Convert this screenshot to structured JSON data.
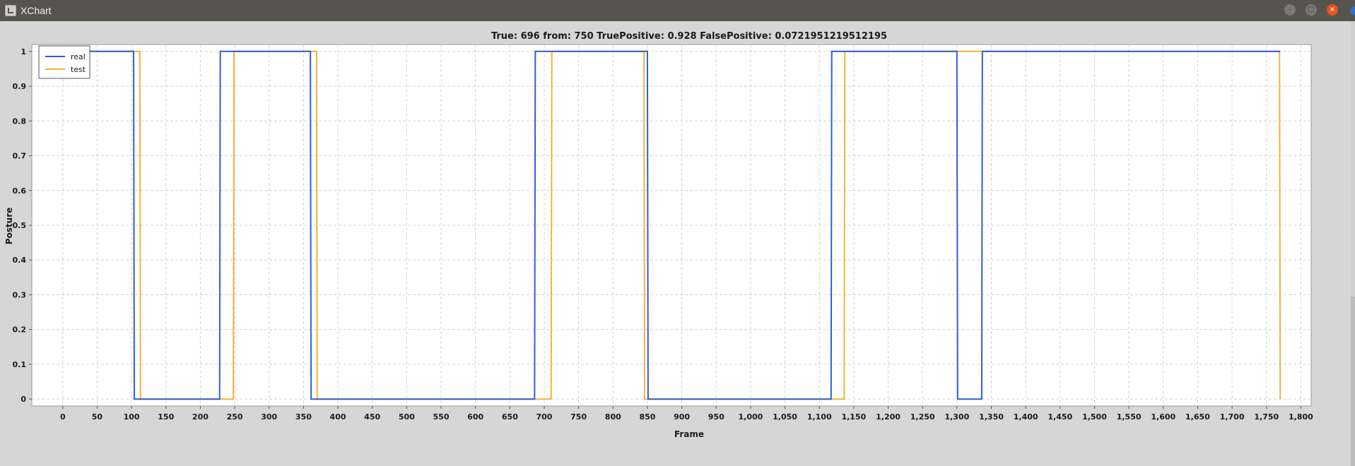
{
  "window": {
    "title": "XChart",
    "buttons": {
      "minimize": "–",
      "maximize": "□",
      "close": "×"
    }
  },
  "colors": {
    "real": "#2f5fd0",
    "test": "#f3b23a",
    "plot_bg": "#ffffff",
    "grid": "#d4d4d4"
  },
  "chart_data": {
    "type": "line",
    "step": true,
    "title": "True: 696 from: 750 TruePositive: 0.928 FalsePositive: 0.0721951219512195",
    "xlabel": "Frame",
    "ylabel": "Posture",
    "xlim": [
      -45,
      1815
    ],
    "ylim": [
      -0.02,
      1.02
    ],
    "xticks": [
      0,
      50,
      100,
      150,
      200,
      250,
      300,
      350,
      400,
      450,
      500,
      550,
      600,
      650,
      700,
      750,
      800,
      850,
      900,
      950,
      1000,
      1050,
      1100,
      1150,
      1200,
      1250,
      1300,
      1350,
      1400,
      1450,
      1500,
      1550,
      1600,
      1650,
      1700,
      1750,
      1800
    ],
    "xtick_labels": [
      "0",
      "50",
      "100",
      "150",
      "200",
      "250",
      "300",
      "350",
      "400",
      "450",
      "500",
      "550",
      "600",
      "650",
      "700",
      "750",
      "800",
      "850",
      "900",
      "950",
      "1,000",
      "1,050",
      "1,100",
      "1,150",
      "1,200",
      "1,250",
      "1,300",
      "1,350",
      "1,400",
      "1,450",
      "1,500",
      "1,550",
      "1,600",
      "1,650",
      "1,700",
      "1,750",
      "1,800"
    ],
    "yticks": [
      0,
      0.1,
      0.2,
      0.3,
      0.4,
      0.5,
      0.6,
      0.7,
      0.8,
      0.9,
      1
    ],
    "ytick_labels": [
      "0",
      "0.1",
      "0.2",
      "0.3",
      "0.4",
      "0.5",
      "0.6",
      "0.7",
      "0.8",
      "0.9",
      "1"
    ],
    "grid": true,
    "legend": "top-left",
    "series": [
      {
        "name": "real",
        "x": [
          0,
          103,
          104,
          228,
          229,
          360,
          361,
          686,
          687,
          850,
          851,
          1117,
          1118,
          1300,
          1301,
          1336,
          1337,
          1770
        ],
        "y": [
          1,
          1,
          0,
          0,
          1,
          1,
          0,
          0,
          1,
          1,
          0,
          0,
          1,
          1,
          0,
          0,
          1,
          1
        ]
      },
      {
        "name": "test",
        "x": [
          0,
          112,
          113,
          248,
          249,
          369,
          370,
          710,
          711,
          845,
          846,
          1136,
          1137,
          1769,
          1770
        ],
        "y": [
          1,
          1,
          0,
          0,
          1,
          1,
          0,
          0,
          1,
          1,
          0,
          0,
          1,
          1,
          0
        ]
      }
    ]
  }
}
